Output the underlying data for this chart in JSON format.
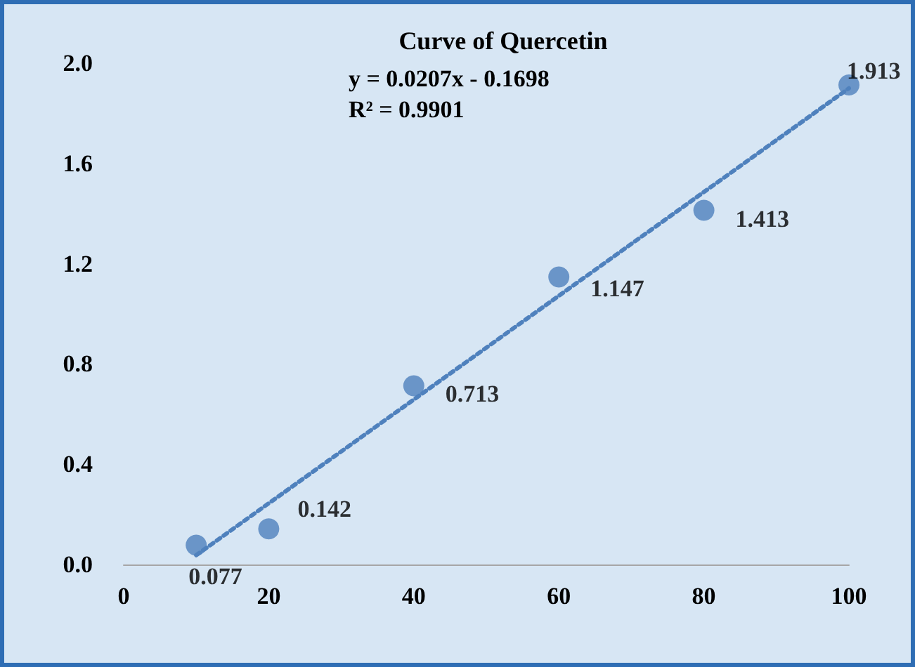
{
  "chart_data": {
    "type": "scatter",
    "title": "Curve of Quercetin",
    "annotations": [
      "y = 0.0207x - 0.1698\nR² = 0.9901"
    ],
    "xlim": [
      0,
      100
    ],
    "xticks": [
      0,
      20,
      40,
      60,
      80,
      100
    ],
    "ylim": [
      0,
      2
    ],
    "yticks": [
      {
        "value": 0,
        "label": "0.0"
      },
      {
        "value": 0.4,
        "label": "0.4"
      },
      {
        "value": 0.8,
        "label": "0.8"
      },
      {
        "value": 1.2,
        "label": "1.2"
      },
      {
        "value": 1.6,
        "label": "1.6"
      },
      {
        "value": 2,
        "label": "2.0"
      }
    ],
    "grid": false,
    "series": [
      {
        "type": "scatter",
        "color": "#4f81bd",
        "marker": "circle",
        "x": [
          10,
          20,
          40,
          60,
          80,
          100
        ],
        "values": [
          0.077,
          0.142,
          0.713,
          1.147,
          1.413,
          1.913
        ],
        "value_labels": [
          "0.077",
          "0.142",
          "0.713",
          "1.147",
          "1.413",
          "1.913"
        ]
      },
      {
        "type": "line",
        "color": "#4f81bd",
        "marker": "none",
        "line_style": "dotted",
        "x": [
          10,
          100
        ],
        "values": [
          0.037,
          1.9
        ]
      }
    ]
  }
}
